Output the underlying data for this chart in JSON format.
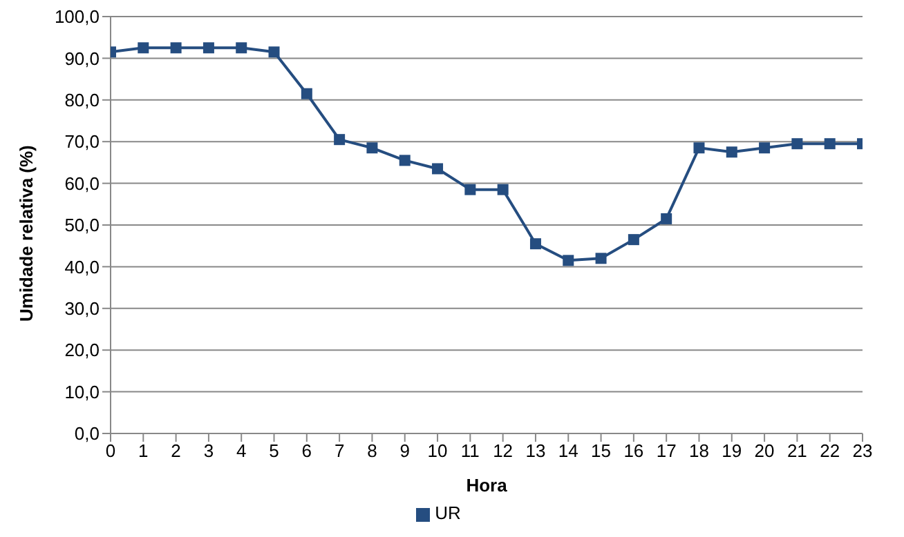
{
  "chart_data": {
    "type": "line",
    "xlabel": "Hora",
    "ylabel": "Umidade relativa (%)",
    "x": [
      0,
      1,
      2,
      3,
      4,
      5,
      6,
      7,
      8,
      9,
      10,
      11,
      12,
      13,
      14,
      15,
      16,
      17,
      18,
      19,
      20,
      21,
      22,
      23
    ],
    "series": [
      {
        "name": "UR",
        "color": "#254d80",
        "values": [
          91.5,
          92.5,
          92.5,
          92.5,
          92.5,
          91.5,
          81.5,
          70.5,
          68.5,
          65.5,
          63.5,
          58.5,
          58.5,
          45.5,
          41.5,
          42,
          46.5,
          51.5,
          68.5,
          67.5,
          68.5,
          69.5,
          69.5,
          69.5
        ]
      }
    ],
    "xlim": [
      0,
      23
    ],
    "xticks": [
      0,
      1,
      2,
      3,
      4,
      5,
      6,
      7,
      8,
      9,
      10,
      11,
      12,
      13,
      14,
      15,
      16,
      17,
      18,
      19,
      20,
      21,
      22,
      23
    ],
    "ylim": [
      0,
      100
    ],
    "yticks": [
      {
        "value": 0,
        "label": "0,0"
      },
      {
        "value": 10,
        "label": "10,0"
      },
      {
        "value": 20,
        "label": "20,0"
      },
      {
        "value": 30,
        "label": "30,0"
      },
      {
        "value": 40,
        "label": "40,0"
      },
      {
        "value": 50,
        "label": "50,0"
      },
      {
        "value": 60,
        "label": "60,0"
      },
      {
        "value": 70,
        "label": "70,0"
      },
      {
        "value": 80,
        "label": "80,0"
      },
      {
        "value": 90,
        "label": "90,0"
      },
      {
        "value": 100,
        "label": "100,0"
      }
    ],
    "grid": "y",
    "legend": "bottom",
    "marker": "square",
    "line_style": "solid"
  }
}
